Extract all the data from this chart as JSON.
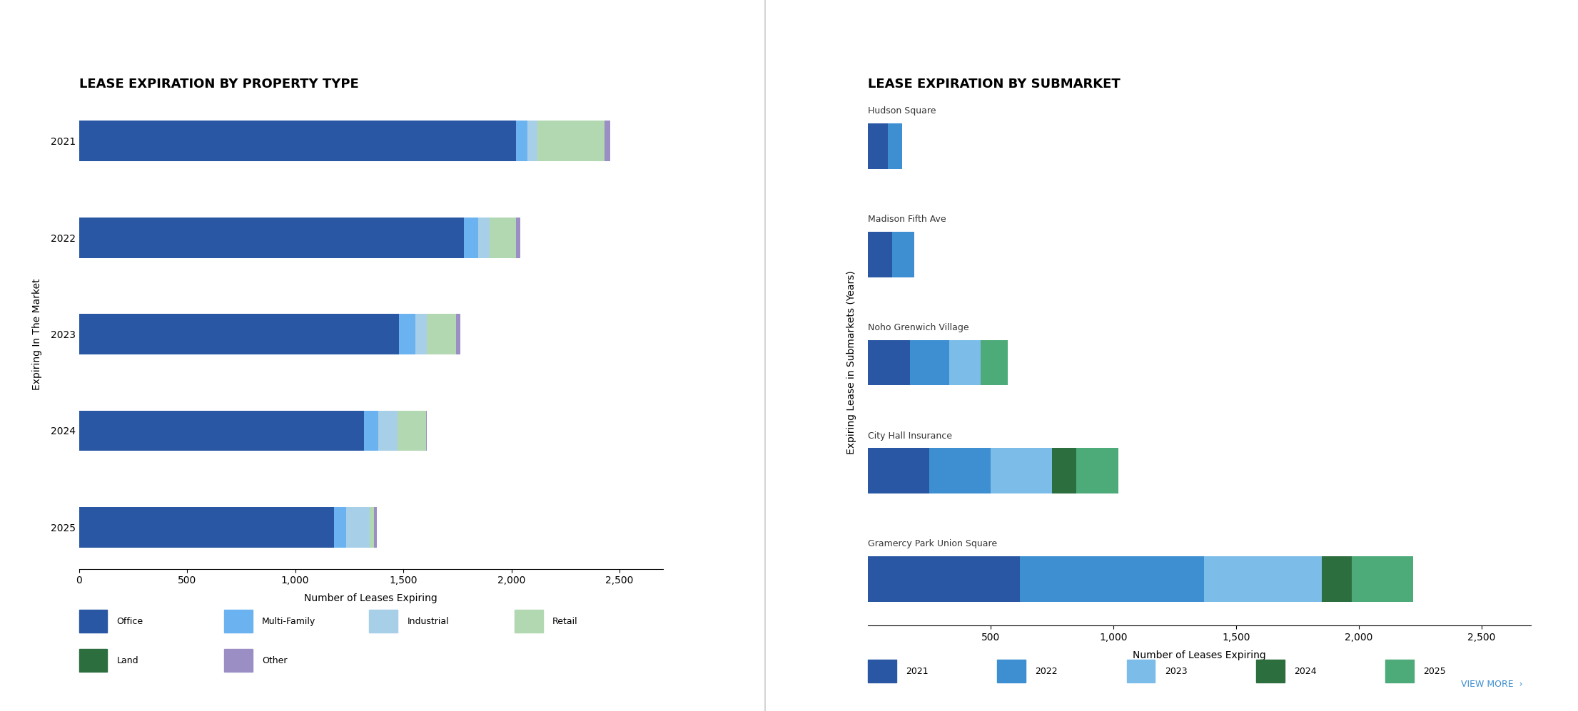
{
  "chart1": {
    "title": "LEASE EXPIRATION BY PROPERTY TYPE",
    "ylabel": "Expiring In The Market",
    "xlabel": "Number of Leases Expiring",
    "years": [
      "2025",
      "2024",
      "2023",
      "2022",
      "2021"
    ],
    "categories": [
      "Office",
      "Multi-Family",
      "Industrial",
      "Retail",
      "Land",
      "Other"
    ],
    "colors": [
      "#2a57a4",
      "#6bb3f0",
      "#a8cfe8",
      "#b2d8b2",
      "#2d6e3e",
      "#9b8ec4"
    ],
    "data": {
      "2025": [
        1180,
        55,
        110,
        20,
        0,
        12
      ],
      "2024": [
        1320,
        65,
        90,
        130,
        0,
        5
      ],
      "2023": [
        1480,
        75,
        55,
        135,
        0,
        18
      ],
      "2022": [
        1780,
        65,
        55,
        120,
        0,
        22
      ],
      "2021": [
        2020,
        55,
        45,
        310,
        0,
        28
      ]
    },
    "xlim": [
      0,
      2700
    ],
    "xticks": [
      0,
      500,
      1000,
      1500,
      2000,
      2500
    ]
  },
  "chart2": {
    "title": "LEASE EXPIRATION BY SUBMARKET",
    "ylabel": "Expiring Lease in Submarkets (Years)",
    "xlabel": "Number of Leases Expiring",
    "submarkets": [
      "Gramercy Park Union Square",
      "City Hall Insurance",
      "Noho Grenwich Village",
      "Madison Fifth Ave",
      "Hudson Square"
    ],
    "years": [
      "2021",
      "2022",
      "2023",
      "2024",
      "2025"
    ],
    "colors": [
      "#2a57a4",
      "#3d8fd1",
      "#7bbde8",
      "#2d6e3e",
      "#4dab7a"
    ],
    "data": {
      "Gramercy Park Union Square": [
        620,
        750,
        480,
        120,
        250
      ],
      "City Hall Insurance": [
        250,
        250,
        250,
        100,
        170
      ],
      "Noho Grenwich Village": [
        170,
        160,
        130,
        0,
        110
      ],
      "Madison Fifth Ave": [
        100,
        90,
        0,
        0,
        0
      ],
      "Hudson Square": [
        80,
        60,
        0,
        0,
        0
      ]
    },
    "xlim": [
      0,
      2700
    ],
    "xticks": [
      500,
      1000,
      1500,
      2000,
      2500
    ]
  },
  "legend1": {
    "items": [
      "Office",
      "Multi-Family",
      "Industrial",
      "Retail",
      "Land",
      "Other"
    ],
    "colors": [
      "#2a57a4",
      "#6bb3f0",
      "#a8cfe8",
      "#b2d8b2",
      "#2d6e3e",
      "#9b8ec4"
    ]
  },
  "legend2": {
    "items": [
      "2021",
      "2022",
      "2023",
      "2024",
      "2025"
    ],
    "colors": [
      "#2a57a4",
      "#3d8fd1",
      "#7bbde8",
      "#2d6e3e",
      "#4dab7a"
    ]
  },
  "background_color": "#ffffff",
  "divider_color": "#cccccc",
  "title_fontsize": 13,
  "label_fontsize": 10,
  "tick_fontsize": 10,
  "bar_height": 0.42
}
